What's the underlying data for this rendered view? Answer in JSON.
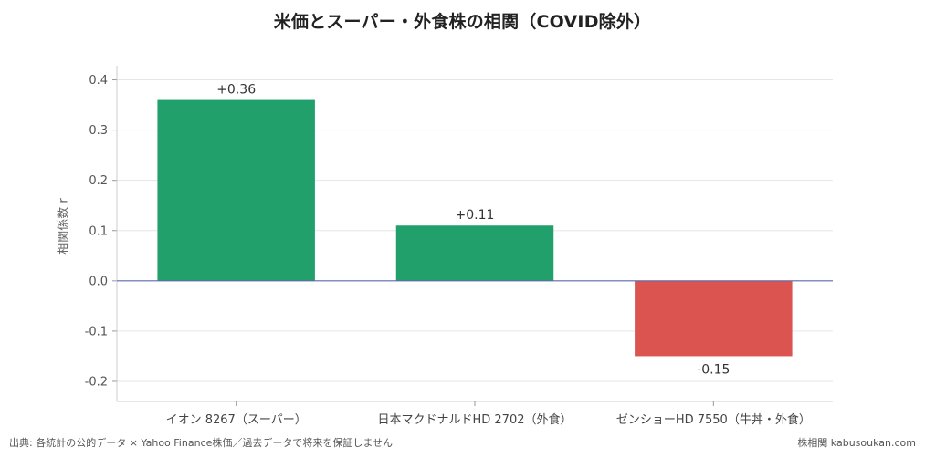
{
  "chart_data": {
    "type": "bar",
    "title": "米価とスーパー・外食株の相関（COVID除外）",
    "ylabel": "相関係数 r",
    "xlabel": "",
    "categories": [
      "イオン 8267（スーパー）",
      "日本マクドナルドHD 2702（外食）",
      "ゼンショーHD 7550（牛丼・外食）"
    ],
    "values": [
      0.36,
      0.11,
      -0.15
    ],
    "value_labels": [
      "+0.36",
      "+0.11",
      "-0.15"
    ],
    "ylim": [
      -0.24,
      0.45
    ],
    "yticks": [
      -0.2,
      -0.1,
      0.0,
      0.1,
      0.2,
      0.3,
      0.4
    ],
    "ytick_labels": [
      "-0.2",
      "-0.1",
      "0.0",
      "0.1",
      "0.2",
      "0.3",
      "0.4"
    ],
    "grid": true,
    "legend": "none",
    "colors": {
      "positive": "#21a06b",
      "negative": "#dc544f",
      "zero_line": "#5a6aa8",
      "grid": "#e6e6e6"
    }
  },
  "footer": {
    "source": "出典: 各統計の公的データ × Yahoo Finance株価／過去データで将来を保証しません",
    "brand": "株相関 kabusoukan.com"
  }
}
